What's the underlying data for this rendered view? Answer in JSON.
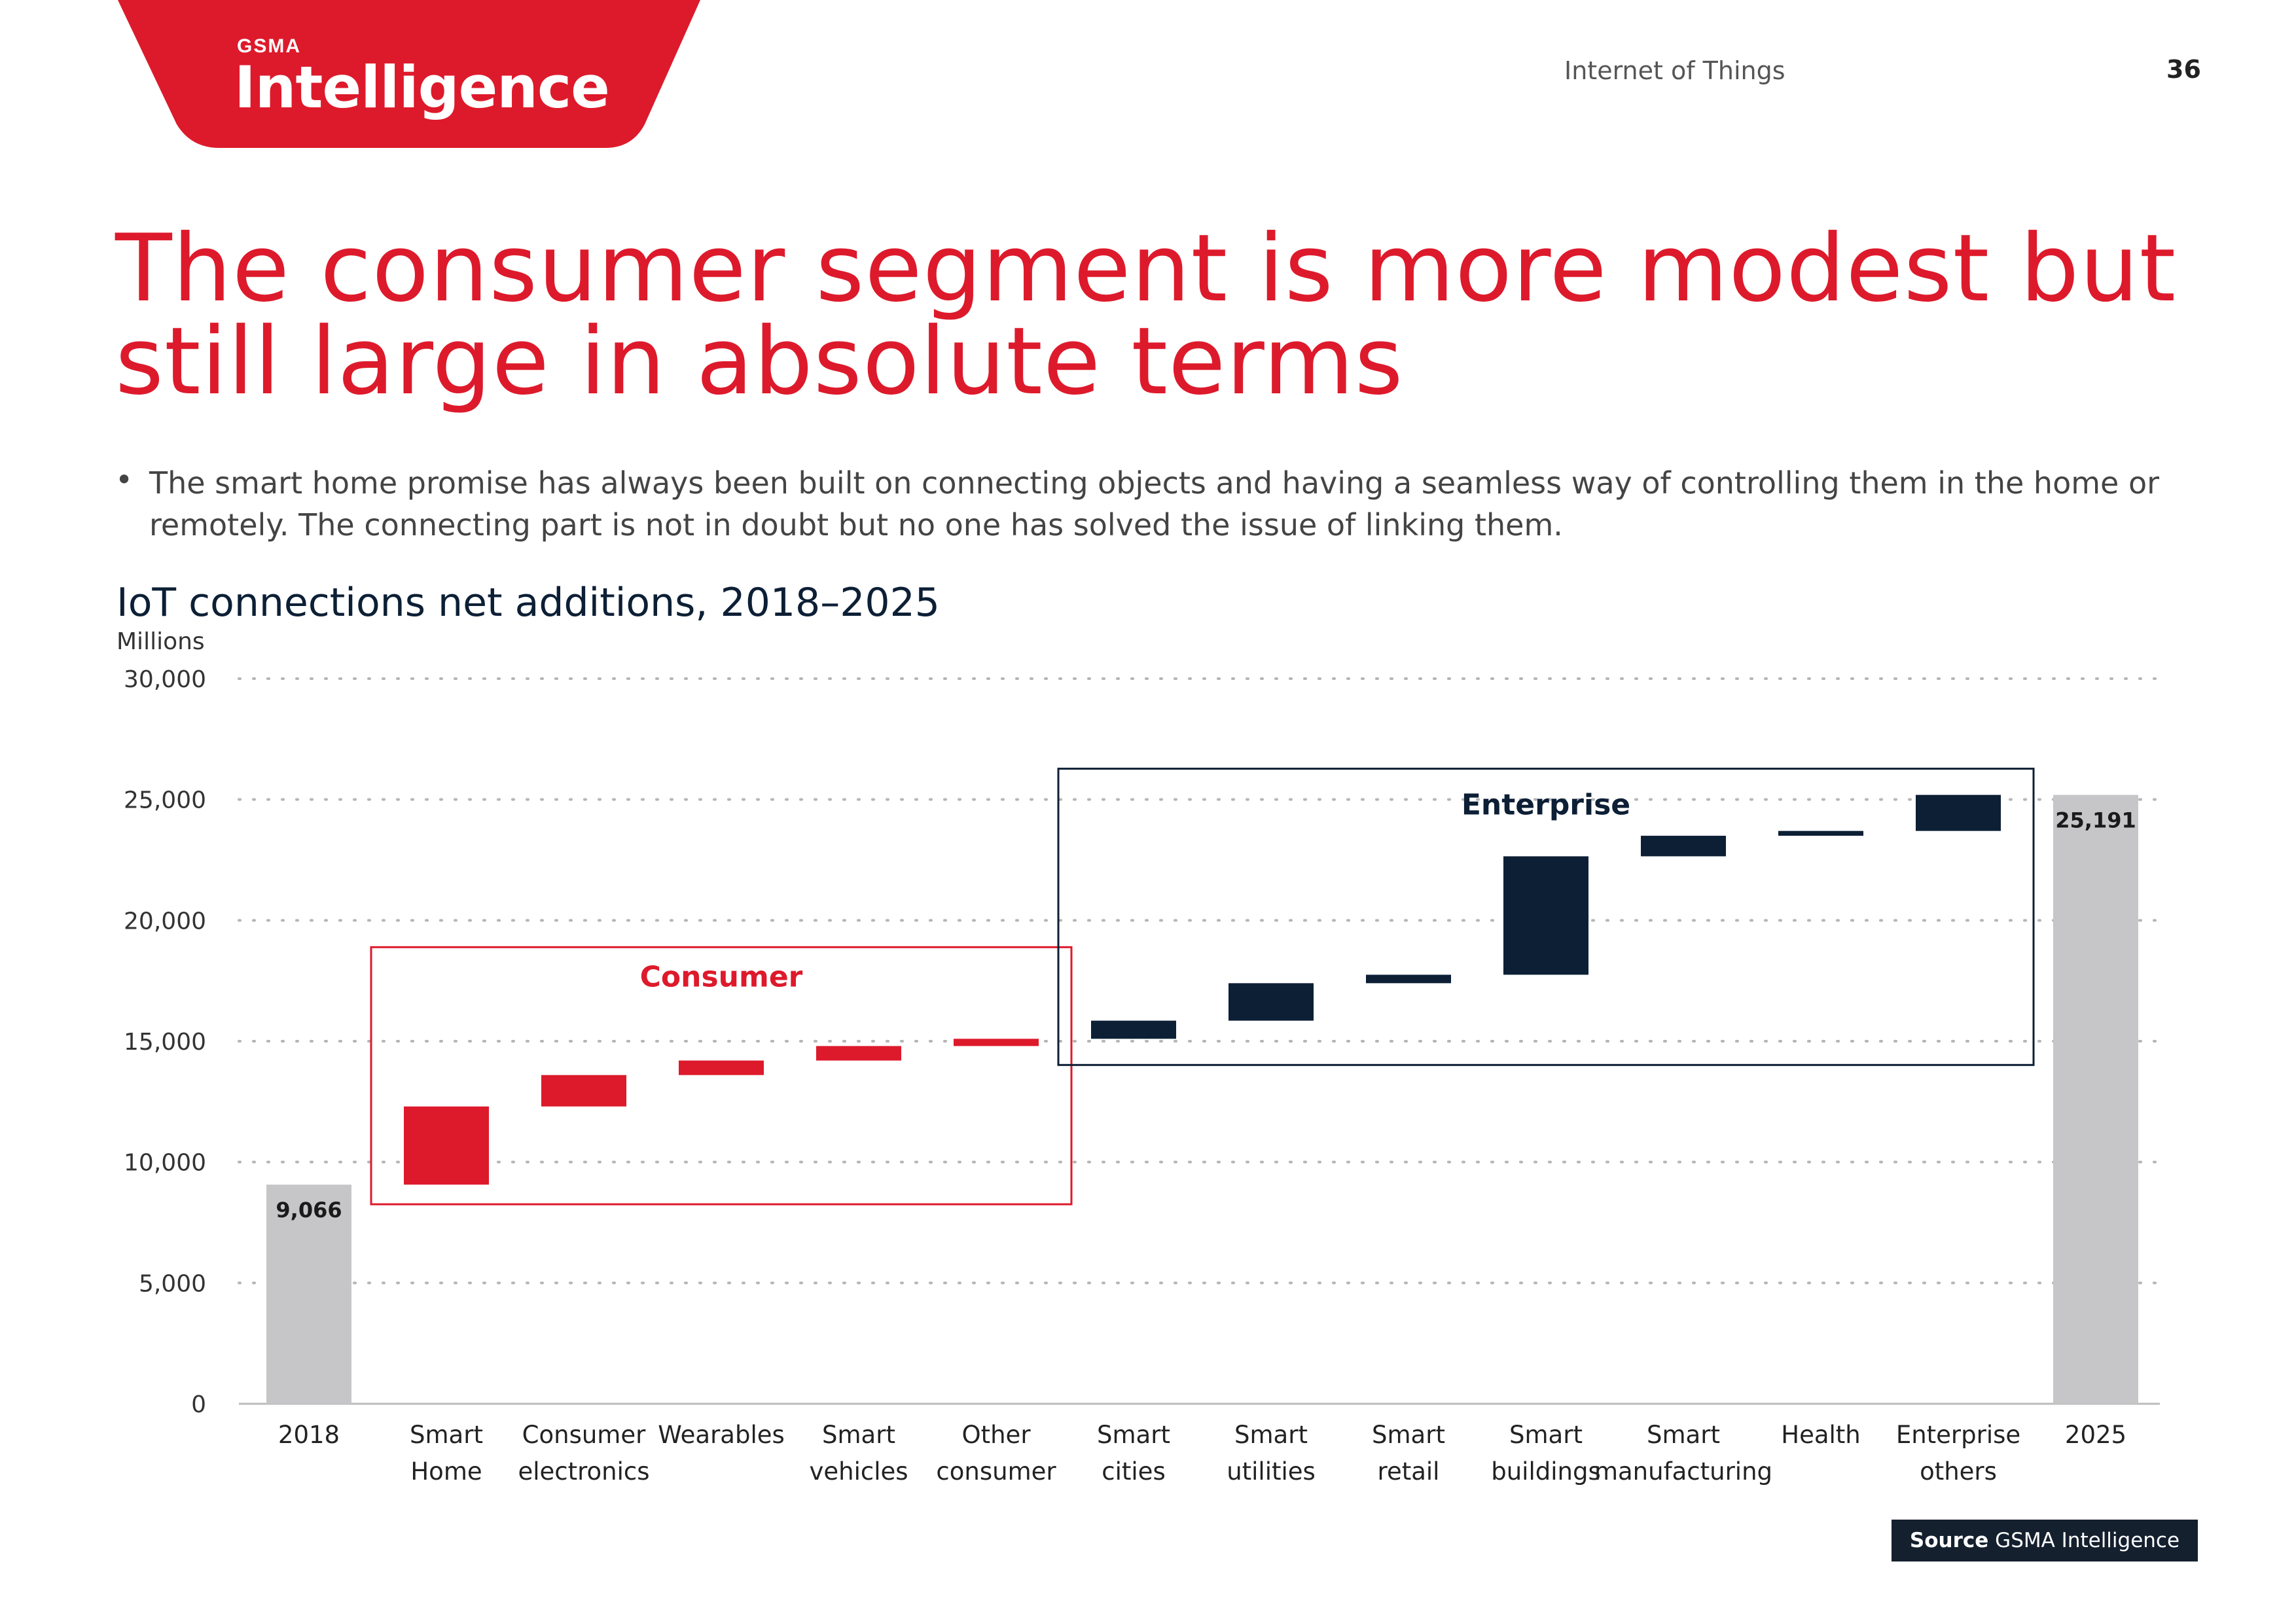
{
  "header": {
    "brand_small": "GSMA",
    "brand_main": "Intelligence",
    "section": "Internet of Things",
    "page_number": "36"
  },
  "title": "The consumer segment is more modest but still large in absolute terms",
  "bullet": "The smart home promise has always been built on connecting objects and having a seamless way of controlling them in the home or remotely. The connecting part is not in doubt but no one has solved the issue of linking them.",
  "source": {
    "label": "Source",
    "value": "GSMA Intelligence"
  },
  "colors": {
    "brand_red": "#dd1a2b",
    "navy": "#0c1f35",
    "total_grey": "#c6c6c8"
  },
  "chart_data": {
    "type": "bar",
    "subtype": "waterfall",
    "title": "IoT connections net additions, 2018–2025",
    "ylabel": "Millions",
    "ylim": [
      0,
      30000
    ],
    "yticks": [
      "0",
      "5,000",
      "10,000",
      "15,000",
      "20,000",
      "25,000",
      "30,000"
    ],
    "ytick_values": [
      0,
      5000,
      10000,
      15000,
      20000,
      25000,
      30000
    ],
    "grid": true,
    "groups": [
      {
        "name": "Consumer",
        "color": "#dd1a2b"
      },
      {
        "name": "Enterprise",
        "color": "#0c1f35"
      }
    ],
    "bars": [
      {
        "label": [
          "2018"
        ],
        "kind": "total",
        "start": 0,
        "end": 9066,
        "value_label": "9,066"
      },
      {
        "label": [
          "Smart",
          "Home"
        ],
        "kind": "Consumer",
        "start": 9066,
        "end": 12300
      },
      {
        "label": [
          "Consumer",
          "electronics"
        ],
        "kind": "Consumer",
        "start": 12300,
        "end": 13600
      },
      {
        "label": [
          "Wearables"
        ],
        "kind": "Consumer",
        "start": 13600,
        "end": 14200
      },
      {
        "label": [
          "Smart",
          "vehicles"
        ],
        "kind": "Consumer",
        "start": 14200,
        "end": 14800
      },
      {
        "label": [
          "Other",
          "consumer"
        ],
        "kind": "Consumer",
        "start": 14800,
        "end": 15100
      },
      {
        "label": [
          "Smart",
          "cities"
        ],
        "kind": "Enterprise",
        "start": 15100,
        "end": 15850
      },
      {
        "label": [
          "Smart",
          "utilities"
        ],
        "kind": "Enterprise",
        "start": 15850,
        "end": 17400
      },
      {
        "label": [
          "Smart",
          "retail"
        ],
        "kind": "Enterprise",
        "start": 17400,
        "end": 17750
      },
      {
        "label": [
          "Smart",
          "buildings"
        ],
        "kind": "Enterprise",
        "start": 17750,
        "end": 22650
      },
      {
        "label": [
          "Smart",
          "manufacturing"
        ],
        "kind": "Enterprise",
        "start": 22650,
        "end": 23500
      },
      {
        "label": [
          "Health"
        ],
        "kind": "Enterprise",
        "start": 23500,
        "end": 23700
      },
      {
        "label": [
          "Enterprise",
          "others"
        ],
        "kind": "Enterprise",
        "start": 23700,
        "end": 25191
      },
      {
        "label": [
          "2025"
        ],
        "kind": "total",
        "start": 0,
        "end": 25191,
        "value_label": "25,191"
      }
    ]
  }
}
